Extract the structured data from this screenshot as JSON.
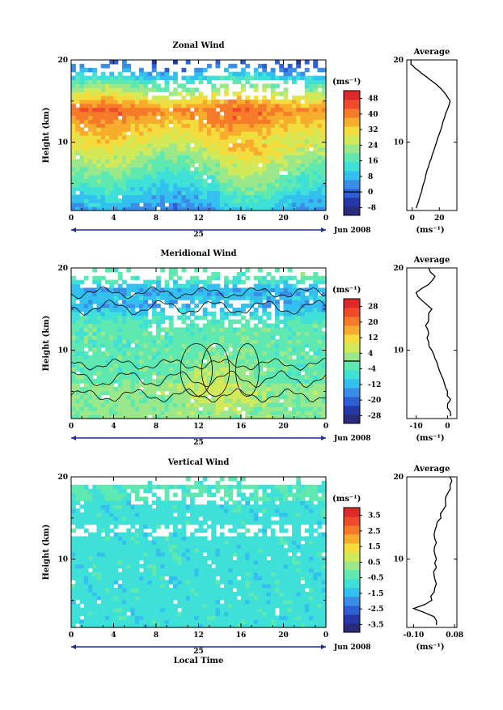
{
  "chart_data": [
    {
      "type": "heatmap",
      "title": "Zonal Wind",
      "xlabel": "",
      "ylabel": "Height (km)",
      "x_ticks": [
        "0",
        "4",
        "8",
        "12",
        "16",
        "20",
        "0"
      ],
      "y_ticks": [
        "20",
        "10"
      ],
      "xlim": [
        0,
        24
      ],
      "ylim": [
        1.7,
        20
      ],
      "day_label": "25",
      "date_label": "Jun 2008",
      "colorbar": {
        "unit": "(ms⁻¹)",
        "ticks": [
          "48",
          "40",
          "32",
          "24",
          "16",
          "8",
          "0",
          "-8"
        ],
        "range": [
          -12,
          52
        ],
        "line_at": "0"
      },
      "profile": {
        "title": "Average",
        "x_ticks": [
          "0",
          "20"
        ],
        "xlim": [
          -4,
          33
        ],
        "y_ticks": [
          "20",
          "10"
        ],
        "xlabel": "(ms⁻¹)",
        "heights": [
          2.0,
          3.0,
          4.0,
          5.0,
          6.0,
          7.0,
          8.0,
          9.0,
          10.0,
          11.0,
          12.0,
          13.0,
          14.0,
          15.0,
          16.0,
          17.0,
          18.0,
          18.5,
          19.0,
          19.5,
          20.0
        ],
        "values": [
          3,
          5,
          7,
          8.5,
          10,
          12,
          14,
          16,
          18,
          20,
          22,
          24,
          26,
          28,
          24,
          18,
          10,
          6,
          2,
          -1,
          -1
        ]
      }
    },
    {
      "type": "heatmap",
      "title": "Meridional Wind",
      "xlabel": "",
      "ylabel": "Height (km)",
      "x_ticks": [
        "0",
        "4",
        "8",
        "12",
        "16",
        "20",
        "0"
      ],
      "y_ticks": [
        "20",
        "10"
      ],
      "xlim": [
        0,
        24
      ],
      "ylim": [
        1.7,
        20
      ],
      "day_label": "25",
      "date_label": "Jun 2008",
      "colorbar": {
        "unit": "(ms⁻¹)",
        "ticks": [
          "28",
          "20",
          "12",
          "4",
          "-4",
          "-12",
          "-20",
          "-28"
        ],
        "range": [
          -32,
          32
        ],
        "line_at": "0"
      },
      "profile": {
        "title": "Average",
        "x_ticks": [
          "-10",
          "0"
        ],
        "xlim": [
          -13,
          3
        ],
        "y_ticks": [
          "20",
          "10"
        ],
        "xlabel": "(ms⁻¹)",
        "heights": [
          2.0,
          3.0,
          4.0,
          5.0,
          6.0,
          7.0,
          8.0,
          9.0,
          10.0,
          11.0,
          12.0,
          13.0,
          14.0,
          15.0,
          16.0,
          17.0,
          18.0,
          19.0,
          20.0
        ],
        "values": [
          1,
          0,
          1,
          0,
          -1,
          -2,
          -3,
          -4,
          -5,
          -6,
          -6,
          -7,
          -6,
          -5,
          -8,
          -10,
          -6,
          -4,
          -6
        ]
      }
    },
    {
      "type": "heatmap",
      "title": "Vertical Wind",
      "xlabel": "Local Time",
      "ylabel": "Height (km)",
      "x_ticks": [
        "0",
        "4",
        "8",
        "12",
        "16",
        "20",
        "0"
      ],
      "y_ticks": [
        "20",
        "10"
      ],
      "xlim": [
        0,
        24
      ],
      "ylim": [
        1.7,
        20
      ],
      "day_label": "25",
      "date_label": "Jun 2008",
      "colorbar": {
        "unit": "(ms⁻¹)",
        "ticks": [
          "3.5",
          "2.5",
          "1.5",
          "0.5",
          "-0.5",
          "-1.5",
          "-2.5",
          "-3.5"
        ],
        "range": [
          -4,
          4
        ],
        "line_at": ""
      },
      "profile": {
        "title": "Average",
        "x_ticks": [
          "-0.10",
          "0.08"
        ],
        "xlim": [
          -0.13,
          0.09
        ],
        "y_ticks": [
          "20",
          "10"
        ],
        "xlabel": "(ms⁻¹)",
        "heights": [
          2.0,
          3.0,
          4.0,
          5.0,
          6.0,
          7.0,
          8.0,
          9.0,
          10.0,
          11.0,
          12.0,
          13.0,
          14.0,
          15.0,
          16.0,
          17.0,
          18.0,
          19.0,
          20.0
        ],
        "values": [
          0.0,
          -0.01,
          -0.1,
          -0.02,
          -0.01,
          0.0,
          -0.01,
          0.0,
          0.0,
          -0.01,
          0.0,
          -0.01,
          0.0,
          0.02,
          0.03,
          0.04,
          0.05,
          0.06,
          0.06
        ]
      }
    }
  ],
  "colors": {
    "palette": [
      "#2a2b7a",
      "#2438a8",
      "#2f5fd6",
      "#3b8ee8",
      "#33c0ef",
      "#3fe0d8",
      "#5fe8b0",
      "#9ae88a",
      "#d2ea5a",
      "#f3dc3d",
      "#f8ac2e",
      "#f57a2a",
      "#ee4a2b",
      "#dc2a2a"
    ]
  }
}
